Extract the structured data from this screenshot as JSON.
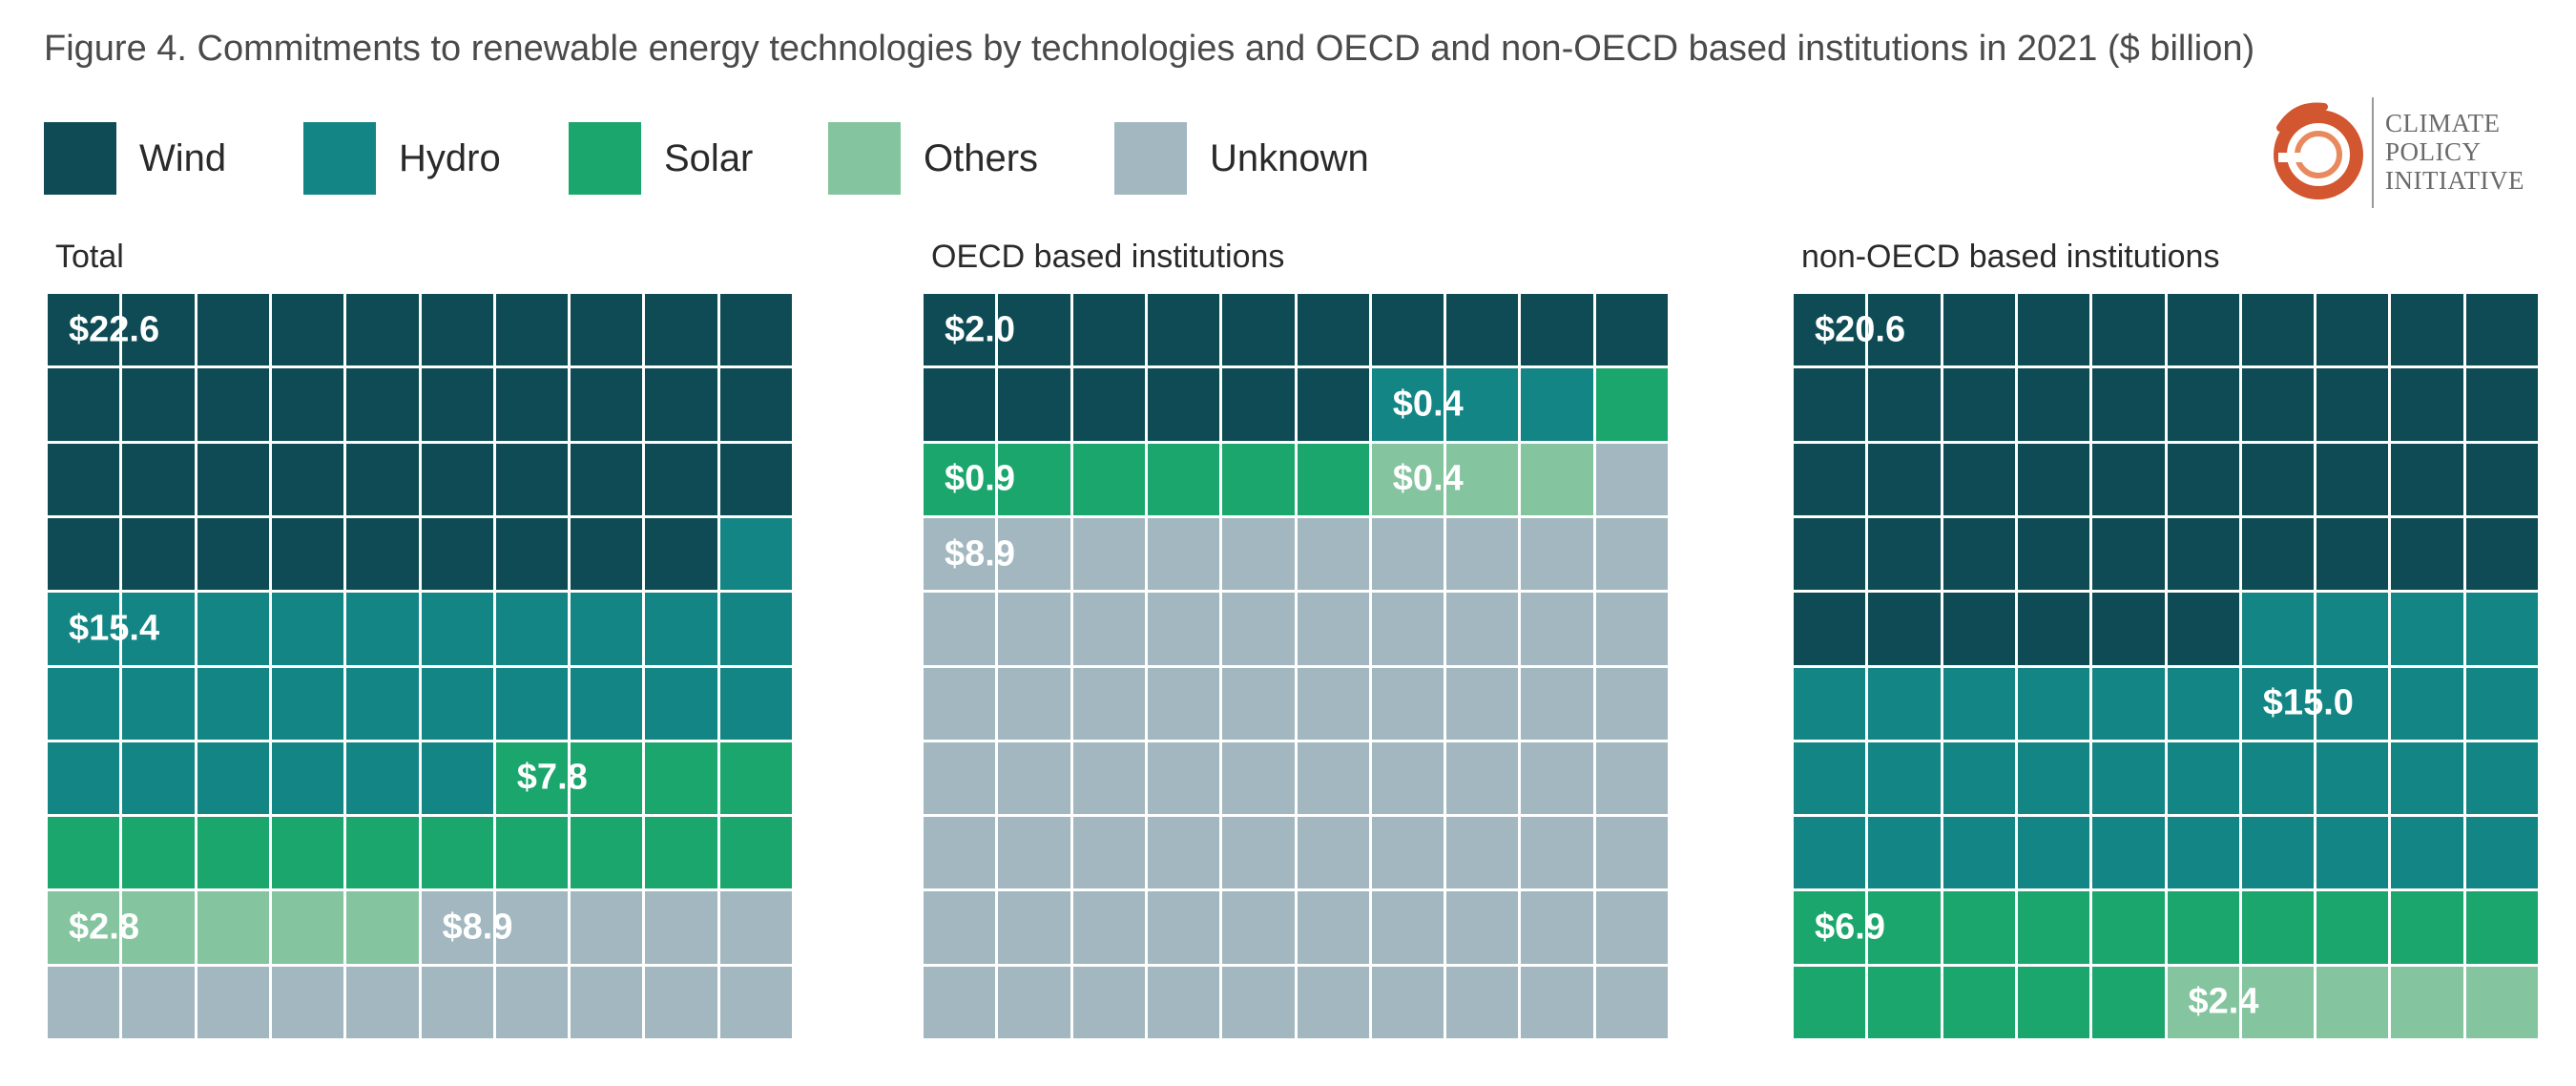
{
  "figure_title": "Figure 4. Commitments to renewable energy technologies by technologies and OECD and non-OECD based institutions in 2021 ($ billion)",
  "colors": {
    "Wind": "#0e4b55",
    "Hydro": "#138585",
    "Solar": "#1aa66c",
    "Others": "#84c49f",
    "Unknown": "#a2b7bf"
  },
  "legend": [
    {
      "label": "Wind",
      "icon": "wind-swatch"
    },
    {
      "label": "Hydro",
      "icon": "hydro-swatch"
    },
    {
      "label": "Solar",
      "icon": "solar-swatch"
    },
    {
      "label": "Others",
      "icon": "others-swatch"
    },
    {
      "label": "Unknown",
      "icon": "unknown-swatch"
    }
  ],
  "logo": {
    "icon": "climate-policy-initiative-logo",
    "lines": [
      "CLIMATE",
      "POLICY",
      "INITIATIVE"
    ]
  },
  "chart_data": [
    {
      "type": "waffle",
      "title": "Total",
      "categories": [
        "Wind",
        "Hydro",
        "Solar",
        "Others",
        "Unknown"
      ],
      "values": [
        22.6,
        15.4,
        7.8,
        2.8,
        8.9
      ],
      "labels": [
        "$22.6",
        "$15.4",
        "$7.8",
        "$2.8",
        "$8.9"
      ],
      "cells": [
        39,
        27,
        14,
        5,
        15
      ]
    },
    {
      "type": "waffle",
      "title": "OECD based institutions",
      "categories": [
        "Wind",
        "Hydro",
        "Solar",
        "Others",
        "Unknown"
      ],
      "values": [
        2.0,
        0.4,
        0.9,
        0.4,
        8.9
      ],
      "labels": [
        "$2.0",
        "$0.4",
        "$0.9",
        "$0.4",
        "$8.9"
      ],
      "cells": [
        16,
        3,
        7,
        3,
        71
      ]
    },
    {
      "type": "waffle",
      "title": "non-OECD based institutions",
      "categories": [
        "Wind",
        "Hydro",
        "Solar",
        "Others",
        "Unknown"
      ],
      "values": [
        20.6,
        15.0,
        6.9,
        2.4,
        null
      ],
      "labels": [
        "$20.6",
        "$15.0",
        "$6.9",
        "$2.4",
        ""
      ],
      "cells": [
        46,
        34,
        15,
        5,
        0
      ]
    }
  ]
}
